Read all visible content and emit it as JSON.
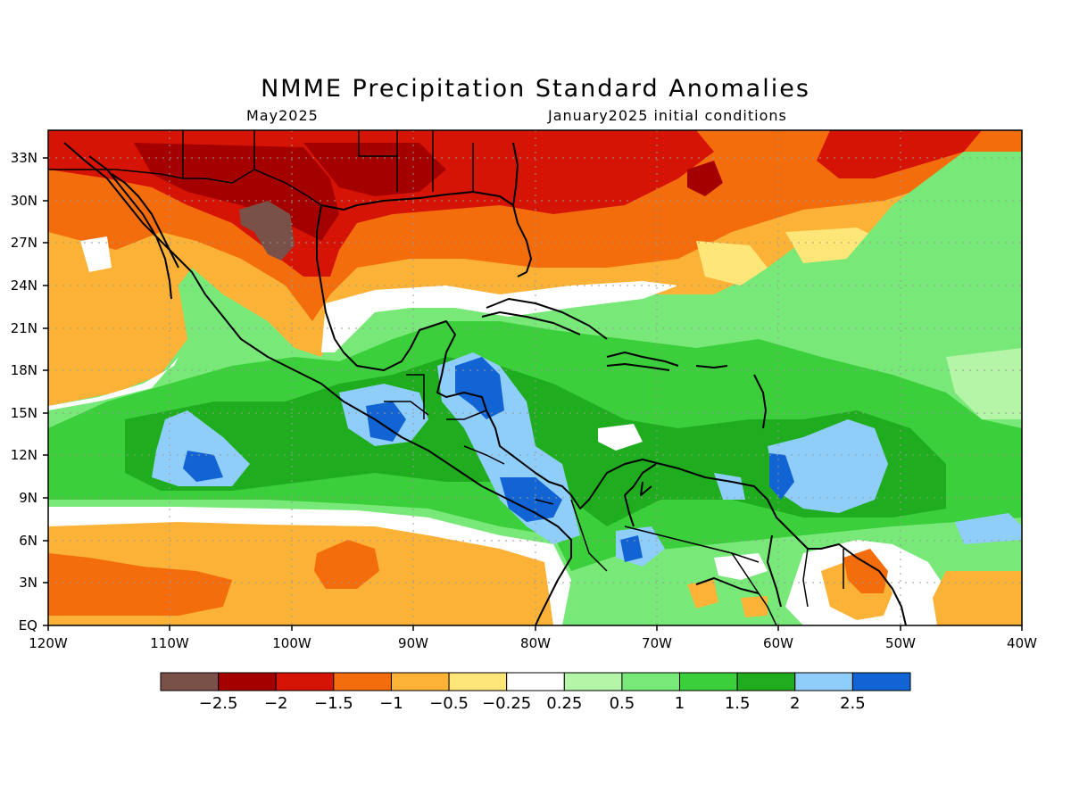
{
  "title": "NMME Precipitation Standard Anomalies",
  "subtitle_left": "May2025",
  "subtitle_right": "January2025 initial conditions",
  "lat_labels": [
    "33N",
    "30N",
    "27N",
    "24N",
    "21N",
    "18N",
    "15N",
    "12N",
    "9N",
    "6N",
    "3N",
    "EQ"
  ],
  "lat_values": [
    33,
    30,
    27,
    24,
    21,
    18,
    15,
    12,
    9,
    6,
    3,
    0
  ],
  "lon_labels": [
    "120W",
    "110W",
    "100W",
    "90W",
    "80W",
    "70W",
    "60W",
    "50W",
    "40W"
  ],
  "lon_values": [
    -120,
    -110,
    -100,
    -90,
    -80,
    -70,
    -60,
    -50,
    -40
  ],
  "colorbar": {
    "colors": [
      "#7a5148",
      "#a50000",
      "#d61406",
      "#f46d0d",
      "#fbb236",
      "#fee678",
      "#ffffff",
      "#b4f5a8",
      "#78e978",
      "#3ccf3c",
      "#1fad1f",
      "#8fcdfa",
      "#1263d3"
    ],
    "labels": [
      "-2.5",
      "-2",
      "-1.5",
      "-1",
      "-0.5",
      "-0.25",
      "0.25",
      "0.5",
      "1",
      "1.5",
      "2",
      "2.5"
    ]
  }
}
